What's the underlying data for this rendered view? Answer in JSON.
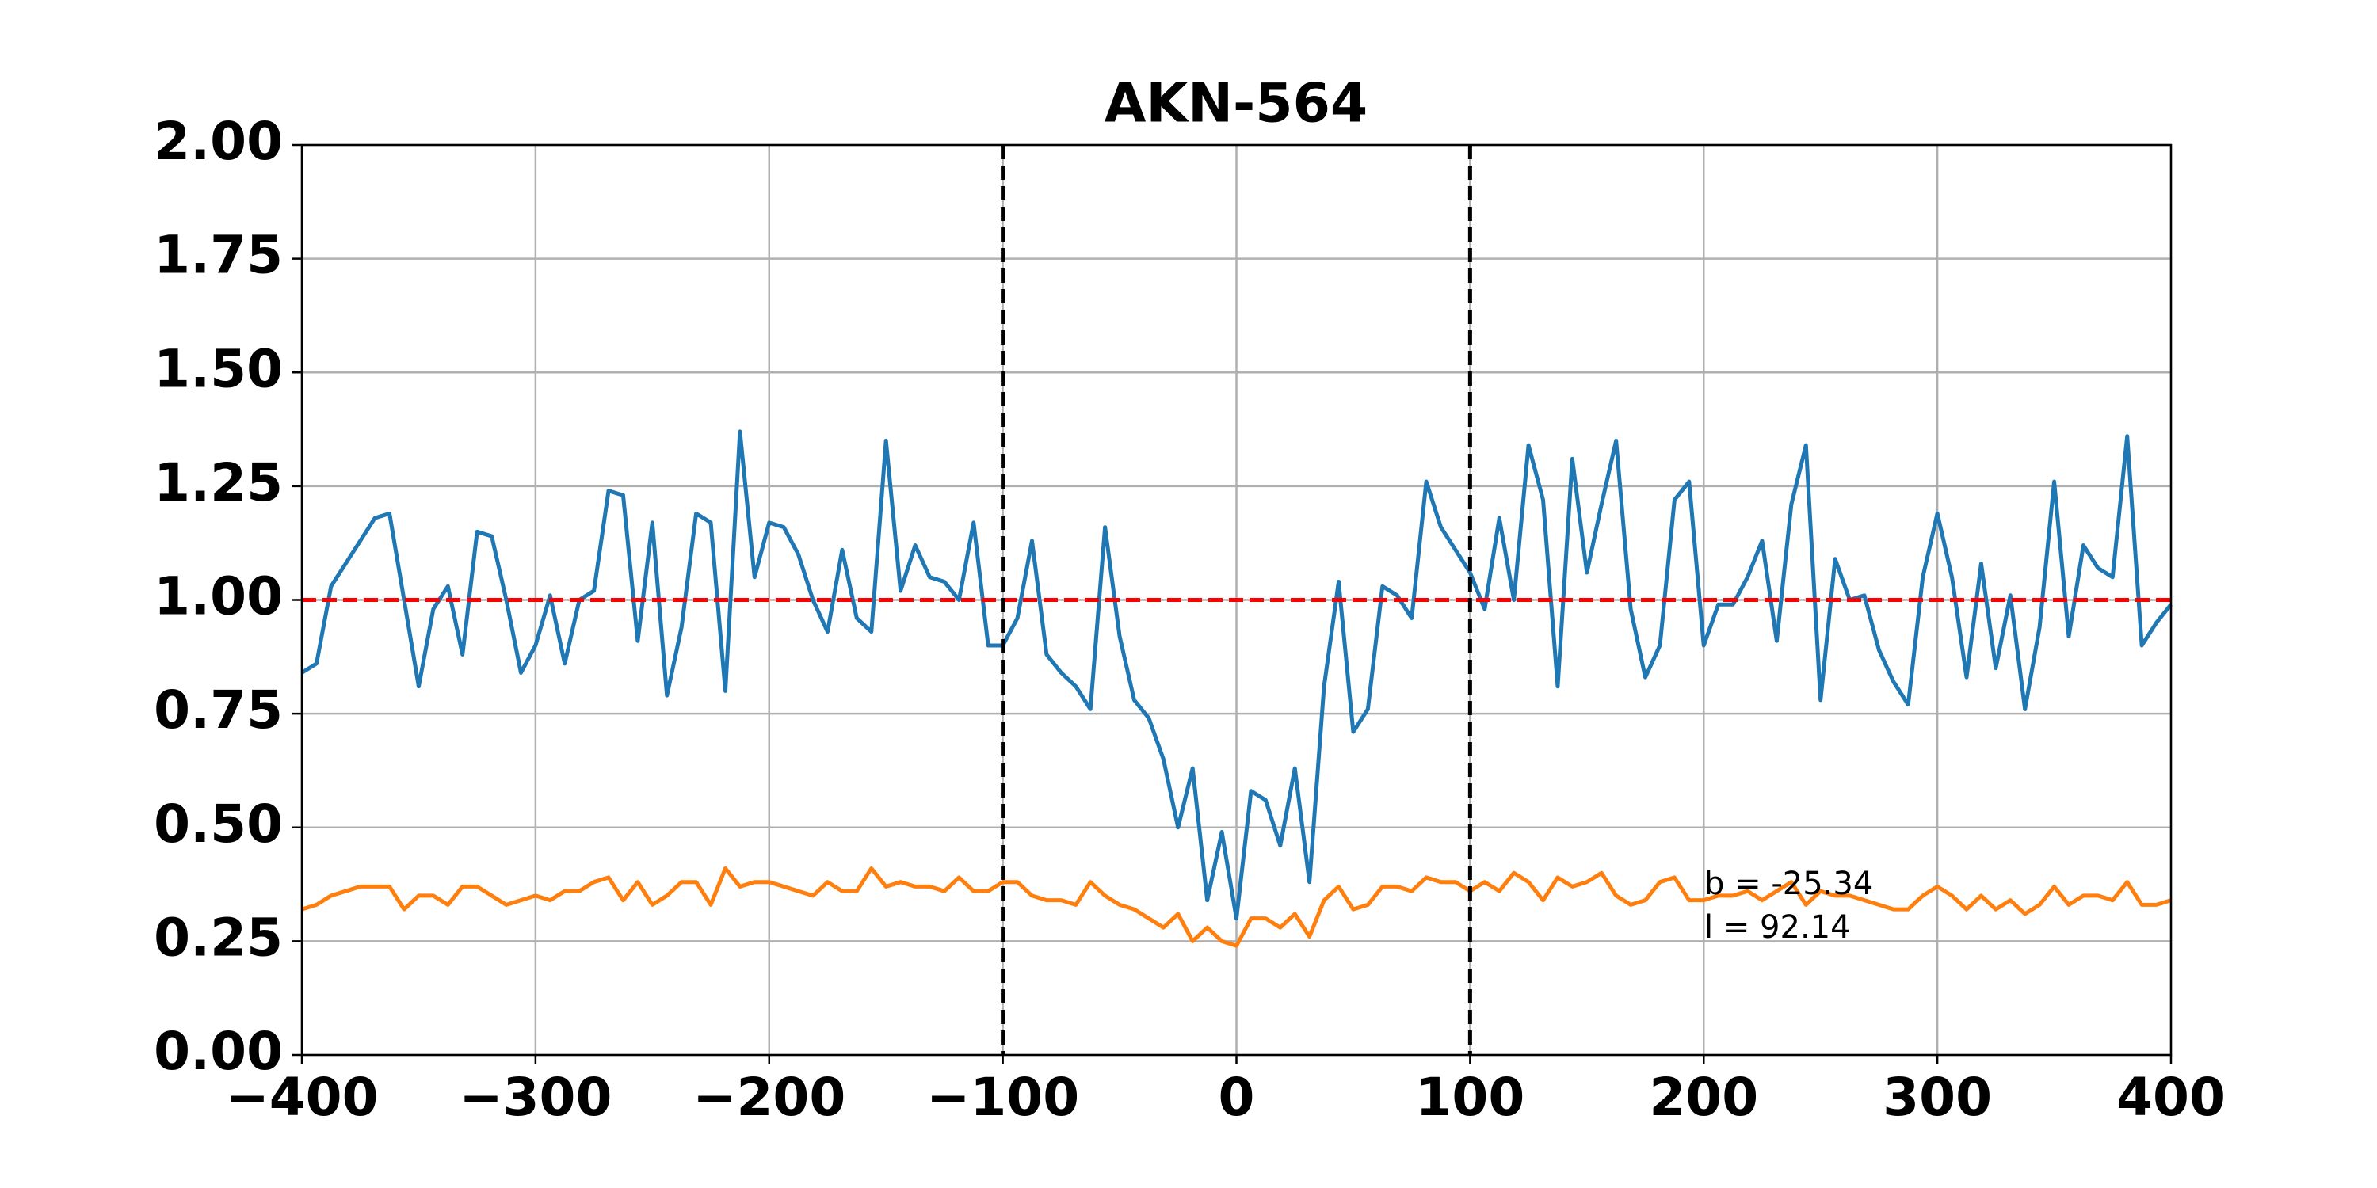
{
  "chart_data": {
    "type": "line",
    "title": "AKN-564",
    "x": [
      -400,
      -393.75,
      -387.5,
      -381.25,
      -375,
      -368.75,
      -362.5,
      -356.25,
      -350,
      -343.75,
      -337.5,
      -331.25,
      -325,
      -318.75,
      -312.5,
      -306.25,
      -300,
      -293.75,
      -287.5,
      -281.25,
      -275,
      -268.75,
      -262.5,
      -256.25,
      -250,
      -243.75,
      -237.5,
      -231.25,
      -225,
      -218.75,
      -212.5,
      -206.25,
      -200,
      -193.75,
      -187.5,
      -181.25,
      -175,
      -168.75,
      -162.5,
      -156.25,
      -150,
      -143.75,
      -137.5,
      -131.25,
      -125,
      -118.75,
      -112.5,
      -106.25,
      -100,
      -93.75,
      -87.5,
      -81.25,
      -75,
      -68.75,
      -62.5,
      -56.25,
      -50,
      -43.75,
      -37.5,
      -31.25,
      -25,
      -18.75,
      -12.5,
      -6.25,
      0,
      6.25,
      12.5,
      18.75,
      25,
      31.25,
      37.5,
      43.75,
      50,
      56.25,
      62.5,
      68.75,
      75,
      81.25,
      87.5,
      93.75,
      100,
      106.25,
      112.5,
      118.75,
      125,
      131.25,
      137.5,
      143.75,
      150,
      156.25,
      162.5,
      168.75,
      175,
      181.25,
      187.5,
      193.75,
      200,
      206.25,
      212.5,
      218.75,
      225,
      231.25,
      237.5,
      243.75,
      250,
      256.25,
      262.5,
      268.75,
      275,
      281.25,
      287.5,
      293.75,
      300,
      306.25,
      312.5,
      318.75,
      325,
      331.25,
      337.5,
      343.75,
      350,
      356.25,
      362.5,
      368.75,
      375,
      381.25,
      387.5,
      393.75,
      400
    ],
    "series": [
      {
        "color": "#1f77b4",
        "values": [
          0.84,
          0.86,
          1.03,
          1.08,
          1.13,
          1.18,
          1.19,
          1.0,
          0.81,
          0.98,
          1.03,
          0.88,
          1.15,
          1.14,
          1.0,
          0.84,
          0.9,
          1.01,
          0.86,
          1.0,
          1.02,
          1.24,
          1.23,
          0.91,
          1.17,
          0.79,
          0.94,
          1.19,
          1.17,
          0.8,
          1.37,
          1.05,
          1.17,
          1.16,
          1.1,
          1.0,
          0.93,
          1.11,
          0.96,
          0.93,
          1.35,
          1.02,
          1.12,
          1.05,
          1.04,
          1.0,
          1.17,
          0.9,
          0.9,
          0.96,
          1.13,
          0.88,
          0.84,
          0.81,
          0.76,
          1.16,
          0.92,
          0.78,
          0.74,
          0.65,
          0.5,
          0.63,
          0.34,
          0.49,
          0.3,
          0.58,
          0.56,
          0.46,
          0.63,
          0.38,
          0.81,
          1.04,
          0.71,
          0.76,
          1.03,
          1.01,
          0.96,
          1.26,
          1.16,
          1.11,
          1.06,
          0.98,
          1.18,
          1.0,
          1.34,
          1.22,
          0.81,
          1.31,
          1.06,
          1.21,
          1.35,
          0.98,
          0.83,
          0.9,
          1.22,
          1.26,
          0.9,
          0.99,
          0.99,
          1.05,
          1.13,
          0.91,
          1.21,
          1.34,
          0.78,
          1.09,
          1.0,
          1.01,
          0.89,
          0.82,
          0.77,
          1.05,
          1.19,
          1.05,
          0.83,
          1.08,
          0.85,
          1.01,
          0.76,
          0.94,
          1.26,
          0.92,
          1.12,
          1.07,
          1.05,
          1.36,
          0.9,
          0.95,
          0.99
        ]
      },
      {
        "color": "#ff7f0e",
        "values": [
          0.32,
          0.33,
          0.35,
          0.36,
          0.37,
          0.37,
          0.37,
          0.32,
          0.35,
          0.35,
          0.33,
          0.37,
          0.37,
          0.35,
          0.33,
          0.34,
          0.35,
          0.34,
          0.36,
          0.36,
          0.38,
          0.39,
          0.34,
          0.38,
          0.33,
          0.35,
          0.38,
          0.38,
          0.33,
          0.41,
          0.37,
          0.38,
          0.38,
          0.37,
          0.36,
          0.35,
          0.38,
          0.36,
          0.36,
          0.41,
          0.37,
          0.38,
          0.37,
          0.37,
          0.36,
          0.39,
          0.36,
          0.36,
          0.38,
          0.38,
          0.35,
          0.34,
          0.34,
          0.33,
          0.38,
          0.35,
          0.33,
          0.32,
          0.3,
          0.28,
          0.31,
          0.25,
          0.28,
          0.25,
          0.24,
          0.3,
          0.3,
          0.28,
          0.31,
          0.26,
          0.34,
          0.37,
          0.32,
          0.33,
          0.37,
          0.37,
          0.36,
          0.39,
          0.38,
          0.38,
          0.36,
          0.38,
          0.36,
          0.4,
          0.38,
          0.34,
          0.39,
          0.37,
          0.38,
          0.4,
          0.35,
          0.33,
          0.34,
          0.38,
          0.39,
          0.34,
          0.34,
          0.35,
          0.35,
          0.36,
          0.34,
          0.36,
          0.38,
          0.33,
          0.36,
          0.35,
          0.35,
          0.34,
          0.33,
          0.32,
          0.32,
          0.35,
          0.37,
          0.35,
          0.32,
          0.35,
          0.32,
          0.34,
          0.31,
          0.33,
          0.37,
          0.33,
          0.35,
          0.35,
          0.34,
          0.38,
          0.33,
          0.33,
          0.34
        ]
      }
    ],
    "hline": 1,
    "hline_color": "#ff0000",
    "vlines": [
      -100,
      100
    ],
    "vline_color": "#000000",
    "annotations": [
      "b = -25.34",
      "l = 92.14"
    ],
    "xlim": [
      -400,
      400
    ],
    "xticks": [
      {
        "value": -400,
        "label": "−400"
      },
      {
        "value": -300,
        "label": "−300"
      },
      {
        "value": -200,
        "label": "−200"
      },
      {
        "value": -100,
        "label": "−100"
      },
      0,
      100,
      200,
      300,
      400
    ],
    "ylim": [
      0,
      2
    ],
    "yticks": [
      {
        "value": 0,
        "label": "0.00"
      },
      {
        "value": 0.25,
        "label": "0.25"
      },
      {
        "value": 0.5,
        "label": "0.50"
      },
      {
        "value": 0.75,
        "label": "0.75"
      },
      {
        "value": 1,
        "label": "1.00"
      },
      {
        "value": 1.25,
        "label": "1.25"
      },
      {
        "value": 1.5,
        "label": "1.50"
      },
      {
        "value": 1.75,
        "label": "1.75"
      },
      {
        "value": 2,
        "label": "2.00"
      }
    ],
    "grid": true
  }
}
